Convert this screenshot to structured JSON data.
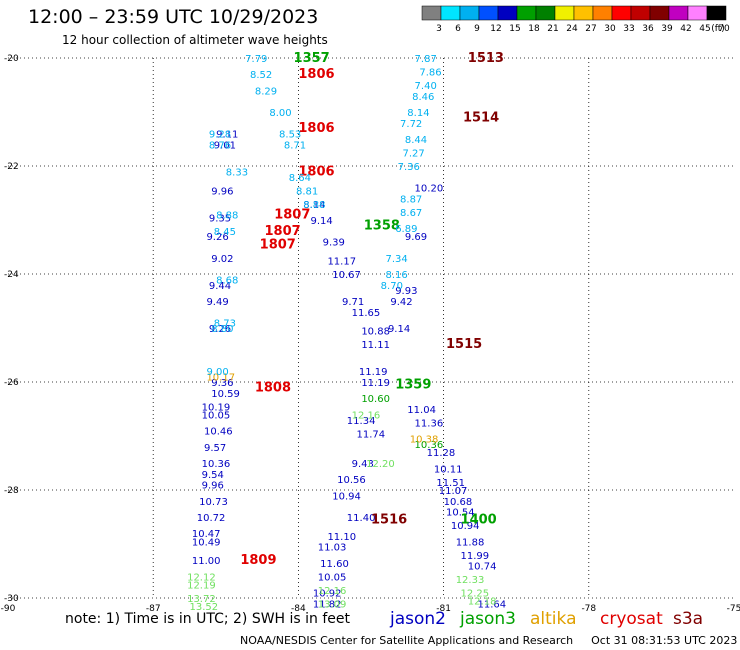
{
  "title": "12:00 – 23:59 UTC 10/29/2023",
  "subtitle": "12 hour collection of altimeter wave heights",
  "color_scale": {
    "unit": "(ft)",
    "labels": [
      "3",
      "6",
      "9",
      "12",
      "15",
      "18",
      "21",
      "24",
      "27",
      "30",
      "33",
      "36",
      "39",
      "42",
      "45",
      "70"
    ],
    "colors": [
      "#808080",
      "#00e5ff",
      "#00b0f0",
      "#0050ff",
      "#0000c0",
      "#00a000",
      "#008000",
      "#f0f000",
      "#ffc000",
      "#ff8000",
      "#ff0000",
      "#c00000",
      "#800000",
      "#c000c0",
      "#ff80ff",
      "#000000"
    ]
  },
  "chart_data": {
    "type": "scatter",
    "x_axis": {
      "range": [
        -90,
        -75
      ],
      "ticks": [
        -90,
        -87,
        -84,
        -81,
        -78,
        -75
      ]
    },
    "y_axis": {
      "range": [
        -30,
        -20
      ],
      "ticks": [
        -20,
        -22,
        -24,
        -26,
        -28,
        -30
      ]
    },
    "grid": true,
    "series": [
      {
        "name": "jason2",
        "color": "#0000c0",
        "points": [
          [
            -85.7,
            -21.4,
            "9.11"
          ],
          [
            -85.75,
            -21.6,
            "9.01"
          ],
          [
            -85.8,
            -22.45,
            "9.96"
          ],
          [
            -85.85,
            -22.95,
            "9.35"
          ],
          [
            -85.9,
            -23.3,
            "9.26"
          ],
          [
            -85.8,
            -23.7,
            "9.02"
          ],
          [
            -85.85,
            -24.2,
            "9.44"
          ],
          [
            -85.9,
            -24.5,
            "9.49"
          ],
          [
            -85.85,
            -25.0,
            "9.26"
          ],
          [
            -85.8,
            -26.0,
            "9.36"
          ],
          [
            -85.8,
            -26.2,
            "10.59"
          ],
          [
            -86.0,
            -26.45,
            "10.19"
          ],
          [
            -86.0,
            -26.6,
            "10.05"
          ],
          [
            -85.95,
            -26.9,
            "10.46"
          ],
          [
            -85.95,
            -27.2,
            "9.57"
          ],
          [
            -86.0,
            -27.5,
            "10.36"
          ],
          [
            -86.0,
            -27.7,
            "9.54"
          ],
          [
            -86.0,
            -27.9,
            "9.96"
          ],
          [
            -86.05,
            -28.2,
            "10.73"
          ],
          [
            -86.1,
            -28.5,
            "10.72"
          ],
          [
            -86.2,
            -28.8,
            "10.47"
          ],
          [
            -86.2,
            -28.95,
            "10.49"
          ],
          [
            -86.2,
            -29.3,
            "11.00"
          ],
          [
            -83.9,
            -22.7,
            "8.14"
          ],
          [
            -83.75,
            -23.0,
            "9.14"
          ],
          [
            -83.5,
            -23.4,
            "9.39"
          ],
          [
            -83.4,
            -23.75,
            "11.17"
          ],
          [
            -83.3,
            -24.0,
            "10.67"
          ],
          [
            -83.1,
            -24.5,
            "9.71"
          ],
          [
            -82.9,
            -24.7,
            "11.65"
          ],
          [
            -82.7,
            -25.05,
            "10.88"
          ],
          [
            -82.7,
            -25.3,
            "11.11"
          ],
          [
            -82.75,
            -25.8,
            "11.19"
          ],
          [
            -82.7,
            -26.0,
            "11.19"
          ],
          [
            -83.0,
            -26.7,
            "11.34"
          ],
          [
            -82.8,
            -26.95,
            "11.74"
          ],
          [
            -82.9,
            -27.5,
            "9.43"
          ],
          [
            -83.2,
            -27.8,
            "10.56"
          ],
          [
            -83.3,
            -28.1,
            "10.94"
          ],
          [
            -83.0,
            -28.5,
            "11.40"
          ],
          [
            -83.4,
            -28.85,
            "11.10"
          ],
          [
            -83.6,
            -29.05,
            "11.03"
          ],
          [
            -83.55,
            -29.35,
            "11.60"
          ],
          [
            -83.6,
            -29.6,
            "10.05"
          ],
          [
            -83.7,
            -29.9,
            "10.92"
          ],
          [
            -83.7,
            -30.1,
            "11.82"
          ],
          [
            -81.6,
            -22.4,
            "10.20"
          ],
          [
            -81.8,
            -23.3,
            "9.69"
          ],
          [
            -82.0,
            -24.3,
            "9.93"
          ],
          [
            -82.1,
            -24.5,
            "9.42"
          ],
          [
            -82.15,
            -25.0,
            "9.14"
          ],
          [
            -81.75,
            -26.5,
            "11.04"
          ],
          [
            -81.6,
            -26.75,
            "11.36"
          ],
          [
            -81.35,
            -27.3,
            "11.28"
          ],
          [
            -81.2,
            -27.6,
            "10.11"
          ],
          [
            -81.15,
            -27.85,
            "11.51"
          ],
          [
            -81.1,
            -28.0,
            "11.07"
          ],
          [
            -81.0,
            -28.2,
            "10.68"
          ],
          [
            -80.95,
            -28.4,
            "10.54"
          ],
          [
            -80.85,
            -28.65,
            "10.94"
          ],
          [
            -80.75,
            -28.95,
            "11.88"
          ],
          [
            -80.65,
            -29.2,
            "11.99"
          ],
          [
            -80.5,
            -29.4,
            "10.74"
          ],
          [
            -80.3,
            -30.1,
            "11.64"
          ]
        ]
      },
      {
        "name": "jason3",
        "color": "#00a000",
        "points": [
          [
            -84.1,
            -20.0,
            "1357"
          ],
          [
            -82.65,
            -23.1,
            "1358"
          ],
          [
            -82.0,
            -26.05,
            "1359"
          ],
          [
            -80.65,
            -28.55,
            "1400"
          ],
          [
            -82.7,
            -26.3,
            "10.60"
          ],
          [
            -81.6,
            -27.15,
            "10.36"
          ]
        ]
      },
      {
        "name": "altika",
        "color": "#e0a000",
        "points": [
          [
            -85.9,
            -25.9,
            "10.17"
          ],
          [
            -81.7,
            -27.05,
            "10.38"
          ]
        ]
      },
      {
        "name": "cryosat",
        "color": "#e00000",
        "points": [
          [
            -84.0,
            -20.3,
            "1806"
          ],
          [
            -84.0,
            -21.3,
            "1806"
          ],
          [
            -84.0,
            -22.1,
            "1806"
          ],
          [
            -84.5,
            -22.9,
            "1807"
          ],
          [
            -84.7,
            -23.2,
            "1807"
          ],
          [
            -84.8,
            -23.45,
            "1807"
          ],
          [
            -84.9,
            -26.1,
            "1808"
          ],
          [
            -85.2,
            -29.3,
            "1809"
          ]
        ]
      },
      {
        "name": "s3a",
        "color": "#800000",
        "points": [
          [
            -80.5,
            -20.0,
            "1513"
          ],
          [
            -80.6,
            -21.1,
            "1514"
          ],
          [
            -80.95,
            -25.3,
            "1515"
          ],
          [
            -82.5,
            -28.55,
            "1516"
          ]
        ]
      },
      {
        "name": "",
        "color": "#00b0f0",
        "points": [
          [
            -85.1,
            -20.0,
            "7.79"
          ],
          [
            -85.0,
            -20.3,
            "8.52"
          ],
          [
            -84.9,
            -20.6,
            "8.29"
          ],
          [
            -84.6,
            -21.0,
            "8.00"
          ],
          [
            -84.4,
            -21.4,
            "8.53"
          ],
          [
            -84.3,
            -21.6,
            "8.71"
          ],
          [
            -85.5,
            -22.1,
            "8.33"
          ],
          [
            -85.7,
            -22.9,
            "8.88"
          ],
          [
            -85.75,
            -23.2,
            "8.45"
          ],
          [
            -85.7,
            -24.1,
            "8.68"
          ],
          [
            -85.75,
            -24.9,
            "8.73"
          ],
          [
            -85.8,
            -25.0,
            "8.80"
          ],
          [
            -85.9,
            -25.8,
            "9.00"
          ],
          [
            -85.85,
            -21.4,
            "9.28"
          ],
          [
            -85.85,
            -21.6,
            "8.76"
          ],
          [
            -84.2,
            -22.2,
            "8.64"
          ],
          [
            -84.05,
            -22.45,
            "8.81"
          ],
          [
            -83.9,
            -22.7,
            "8.88"
          ],
          [
            -81.6,
            -20.0,
            "7.87"
          ],
          [
            -81.5,
            -20.25,
            "7.86"
          ],
          [
            -81.6,
            -20.5,
            "7.40"
          ],
          [
            -81.65,
            -20.7,
            "8.46"
          ],
          [
            -81.75,
            -21.0,
            "8.14"
          ],
          [
            -81.9,
            -21.2,
            "7.72"
          ],
          [
            -81.8,
            -21.5,
            "8.44"
          ],
          [
            -81.85,
            -21.75,
            "7.27"
          ],
          [
            -81.95,
            -22.0,
            "7.36"
          ],
          [
            -81.9,
            -22.6,
            "8.87"
          ],
          [
            -81.9,
            -22.85,
            "8.67"
          ],
          [
            -82.0,
            -23.15,
            "6.89"
          ],
          [
            -82.2,
            -23.7,
            "7.34"
          ],
          [
            -82.2,
            -24.0,
            "8.16"
          ],
          [
            -82.3,
            -24.2,
            "8.70"
          ]
        ]
      },
      {
        "name": "",
        "color": "#70e060",
        "points": [
          [
            -82.9,
            -26.6,
            "12.16"
          ],
          [
            -82.6,
            -27.5,
            "12.20"
          ],
          [
            -86.3,
            -29.6,
            "12.12"
          ],
          [
            -86.3,
            -29.75,
            "12.19"
          ],
          [
            -83.6,
            -29.85,
            "12.16"
          ],
          [
            -86.3,
            -30.0,
            "13.72"
          ],
          [
            -86.25,
            -30.15,
            "13.52"
          ],
          [
            -83.6,
            -30.1,
            "13.09"
          ],
          [
            -80.75,
            -29.65,
            "12.33"
          ],
          [
            -80.65,
            -29.9,
            "12.25"
          ],
          [
            -80.5,
            -30.05,
            "12.18"
          ]
        ]
      }
    ]
  },
  "footer": {
    "note": "note: 1) Time is in UTC; 2) SWH is in feet",
    "legend": [
      {
        "name": "jason2",
        "color": "#0000c0"
      },
      {
        "name": "jason3",
        "color": "#00a000"
      },
      {
        "name": "altika",
        "color": "#e0a000"
      },
      {
        "name": "cryosat",
        "color": "#e00000"
      },
      {
        "name": "s3a",
        "color": "#800000"
      }
    ],
    "credit": "NOAA/NESDIS Center for Satellite Applications and Research",
    "timestamp": "Oct 31 08:31:53 UTC 2023"
  }
}
